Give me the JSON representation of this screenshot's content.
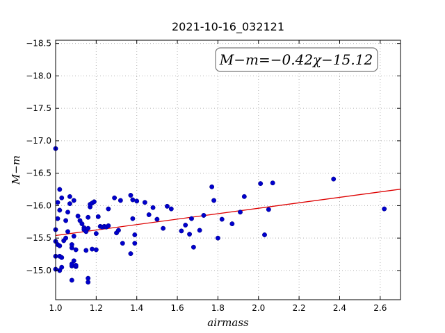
{
  "chart_data": {
    "type": "scatter",
    "title": "2021-10-16_032121",
    "xlabel": "airmass",
    "ylabel": "M−m",
    "xlim": [
      1.0,
      2.7
    ],
    "ylim": [
      -18.55,
      -14.55
    ],
    "y_inverted": true,
    "grid": true,
    "x_ticks": [
      1.0,
      1.2,
      1.4,
      1.6,
      1.8,
      2.0,
      2.2,
      2.4,
      2.6
    ],
    "x_tick_labels": [
      "1.0",
      "1.2",
      "1.4",
      "1.6",
      "1.8",
      "2.0",
      "2.2",
      "2.4",
      "2.6"
    ],
    "y_ticks": [
      -15.0,
      -15.5,
      -16.0,
      -16.5,
      -17.0,
      -17.5,
      -18.0,
      -18.5
    ],
    "y_tick_labels": [
      "−15.0",
      "−15.5",
      "−16.0",
      "−16.5",
      "−17.0",
      "−17.5",
      "−18.0",
      "−18.5"
    ],
    "annotation": "M−m=−0.42χ−15.12",
    "annotation_placement": "top-right",
    "fit": {
      "slope": -0.42,
      "intercept": -15.12,
      "color": "#dd0000"
    },
    "point_color": "#0000cc",
    "points": [
      [
        1.0,
        -15.02
      ],
      [
        1.0,
        -15.22
      ],
      [
        1.0,
        -15.45
      ],
      [
        1.0,
        -15.63
      ],
      [
        1.0,
        -16.88
      ],
      [
        1.01,
        -15.8
      ],
      [
        1.01,
        -16.05
      ],
      [
        1.01,
        -15.4
      ],
      [
        1.02,
        -15.38
      ],
      [
        1.02,
        -15.22
      ],
      [
        1.02,
        -15.0
      ],
      [
        1.03,
        -15.2
      ],
      [
        1.03,
        -15.05
      ],
      [
        1.02,
        -16.25
      ],
      [
        1.02,
        -15.93
      ],
      [
        1.03,
        -16.12
      ],
      [
        1.04,
        -15.46
      ],
      [
        1.05,
        -15.5
      ],
      [
        1.05,
        -15.77
      ],
      [
        1.06,
        -15.6
      ],
      [
        1.06,
        -15.9
      ],
      [
        1.07,
        -16.03
      ],
      [
        1.07,
        -16.14
      ],
      [
        1.08,
        -14.85
      ],
      [
        1.08,
        -15.07
      ],
      [
        1.08,
        -15.1
      ],
      [
        1.08,
        -15.35
      ],
      [
        1.08,
        -15.4
      ],
      [
        1.09,
        -15.15
      ],
      [
        1.09,
        -15.53
      ],
      [
        1.09,
        -16.08
      ],
      [
        1.1,
        -15.06
      ],
      [
        1.1,
        -15.08
      ],
      [
        1.1,
        -15.32
      ],
      [
        1.11,
        -15.84
      ],
      [
        1.12,
        -15.77
      ],
      [
        1.13,
        -15.72
      ],
      [
        1.14,
        -15.66
      ],
      [
        1.14,
        -15.63
      ],
      [
        1.15,
        -15.6
      ],
      [
        1.15,
        -15.31
      ],
      [
        1.16,
        -14.82
      ],
      [
        1.16,
        -14.88
      ],
      [
        1.16,
        -15.65
      ],
      [
        1.16,
        -15.82
      ],
      [
        1.17,
        -15.98
      ],
      [
        1.17,
        -16.02
      ],
      [
        1.18,
        -15.33
      ],
      [
        1.18,
        -16.04
      ],
      [
        1.19,
        -16.06
      ],
      [
        1.2,
        -15.32
      ],
      [
        1.2,
        -15.57
      ],
      [
        1.21,
        -15.83
      ],
      [
        1.22,
        -15.68
      ],
      [
        1.23,
        -15.67
      ],
      [
        1.24,
        -15.68
      ],
      [
        1.25,
        -15.67
      ],
      [
        1.26,
        -15.69
      ],
      [
        1.26,
        -15.95
      ],
      [
        1.29,
        -16.12
      ],
      [
        1.3,
        -15.58
      ],
      [
        1.31,
        -15.62
      ],
      [
        1.32,
        -16.08
      ],
      [
        1.33,
        -15.42
      ],
      [
        1.37,
        -15.26
      ],
      [
        1.37,
        -16.16
      ],
      [
        1.38,
        -16.09
      ],
      [
        1.38,
        -15.8
      ],
      [
        1.39,
        -15.42
      ],
      [
        1.39,
        -15.55
      ],
      [
        1.4,
        -16.07
      ],
      [
        1.44,
        -16.05
      ],
      [
        1.46,
        -15.86
      ],
      [
        1.48,
        -15.97
      ],
      [
        1.5,
        -15.79
      ],
      [
        1.53,
        -15.65
      ],
      [
        1.55,
        -15.99
      ],
      [
        1.57,
        -15.95
      ],
      [
        1.62,
        -15.61
      ],
      [
        1.64,
        -15.7
      ],
      [
        1.66,
        -15.56
      ],
      [
        1.67,
        -15.8
      ],
      [
        1.68,
        -15.36
      ],
      [
        1.71,
        -15.62
      ],
      [
        1.73,
        -15.85
      ],
      [
        1.77,
        -16.29
      ],
      [
        1.78,
        -16.08
      ],
      [
        1.8,
        -15.5
      ],
      [
        1.82,
        -15.79
      ],
      [
        1.87,
        -15.72
      ],
      [
        1.91,
        -15.9
      ],
      [
        1.93,
        -16.14
      ],
      [
        2.01,
        -16.34
      ],
      [
        2.03,
        -15.55
      ],
      [
        2.05,
        -15.94
      ],
      [
        2.07,
        -16.35
      ],
      [
        2.37,
        -16.41
      ],
      [
        2.62,
        -15.95
      ]
    ]
  }
}
